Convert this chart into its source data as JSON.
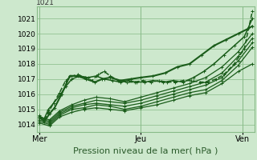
{
  "bg_color": "#cde8cd",
  "grid_color": "#88bb88",
  "line_color": "#1a5c1a",
  "xlabel": "Pression niveau de la mer( hPa )",
  "xlabel_fontsize": 8,
  "ylim": [
    1013.5,
    1021.8
  ],
  "xlim": [
    -0.02,
    2.12
  ],
  "yticks": [
    1014,
    1015,
    1016,
    1017,
    1018,
    1019,
    1020,
    1021
  ],
  "ytick_fontsize": 6.5,
  "xtick_labels": [
    "Mer",
    "Jeu",
    "Ven"
  ],
  "xtick_positions": [
    0.0,
    1.0,
    2.0
  ],
  "series": [
    {
      "x": [
        0.0,
        0.05,
        0.1,
        0.15,
        0.22,
        0.3,
        0.38,
        0.46,
        0.55,
        0.62,
        0.7,
        0.8,
        0.9,
        1.0,
        1.12,
        1.24,
        1.36,
        1.48,
        1.6,
        1.72,
        1.84,
        1.96,
        2.05,
        2.1
      ],
      "y": [
        1014.5,
        1014.2,
        1014.7,
        1015.1,
        1016.0,
        1017.2,
        1017.2,
        1017.0,
        1016.8,
        1017.0,
        1017.1,
        1016.9,
        1017.0,
        1017.1,
        1017.2,
        1017.4,
        1017.8,
        1018.0,
        1018.6,
        1019.2,
        1019.6,
        1020.0,
        1020.3,
        1020.5
      ],
      "ls": "-",
      "lw": 1.5,
      "dashed": false
    },
    {
      "x": [
        0.0,
        0.1,
        0.2,
        0.32,
        0.44,
        0.56,
        0.7,
        0.84,
        1.0,
        1.16,
        1.32,
        1.48,
        1.64,
        1.8,
        1.96,
        2.1
      ],
      "y": [
        1014.5,
        1014.3,
        1014.9,
        1015.3,
        1015.6,
        1015.8,
        1015.7,
        1015.5,
        1015.8,
        1016.1,
        1016.4,
        1016.7,
        1017.1,
        1017.8,
        1018.8,
        1020.0
      ],
      "ls": "-",
      "lw": 0.9,
      "dashed": false
    },
    {
      "x": [
        0.0,
        0.1,
        0.2,
        0.32,
        0.44,
        0.56,
        0.7,
        0.84,
        1.0,
        1.16,
        1.32,
        1.48,
        1.64,
        1.8,
        1.96,
        2.1
      ],
      "y": [
        1014.4,
        1014.2,
        1014.8,
        1015.2,
        1015.4,
        1015.6,
        1015.5,
        1015.4,
        1015.6,
        1015.9,
        1016.2,
        1016.5,
        1016.8,
        1017.4,
        1018.5,
        1019.7
      ],
      "ls": "-",
      "lw": 0.9,
      "dashed": false
    },
    {
      "x": [
        0.0,
        0.1,
        0.2,
        0.32,
        0.44,
        0.56,
        0.7,
        0.84,
        1.0,
        1.16,
        1.32,
        1.48,
        1.64,
        1.8,
        1.96,
        2.1
      ],
      "y": [
        1014.3,
        1014.1,
        1014.7,
        1015.1,
        1015.3,
        1015.4,
        1015.3,
        1015.2,
        1015.4,
        1015.7,
        1016.0,
        1016.3,
        1016.6,
        1017.1,
        1018.2,
        1019.4
      ],
      "ls": "-",
      "lw": 0.9,
      "dashed": false
    },
    {
      "x": [
        0.0,
        0.1,
        0.2,
        0.32,
        0.44,
        0.56,
        0.7,
        0.84,
        1.0,
        1.16,
        1.32,
        1.48,
        1.64,
        1.8,
        1.96,
        2.1
      ],
      "y": [
        1014.2,
        1014.0,
        1014.6,
        1015.0,
        1015.1,
        1015.3,
        1015.2,
        1015.0,
        1015.2,
        1015.5,
        1015.8,
        1016.1,
        1016.3,
        1016.9,
        1017.9,
        1019.1
      ],
      "ls": "-",
      "lw": 0.9,
      "dashed": false
    },
    {
      "x": [
        0.0,
        0.1,
        0.2,
        0.32,
        0.44,
        0.56,
        0.7,
        0.84,
        1.0,
        1.16,
        1.32,
        1.48,
        1.64,
        1.8,
        1.96,
        2.1
      ],
      "y": [
        1014.1,
        1013.9,
        1014.5,
        1014.8,
        1015.0,
        1015.1,
        1015.0,
        1014.9,
        1015.1,
        1015.3,
        1015.6,
        1015.9,
        1016.1,
        1016.7,
        1017.5,
        1018.0
      ],
      "ls": "-",
      "lw": 0.9,
      "dashed": false
    },
    {
      "x": [
        0.0,
        0.05,
        0.09,
        0.14,
        0.2,
        0.26,
        0.32,
        0.38,
        0.45,
        0.52,
        0.58,
        0.64,
        0.7,
        0.78,
        0.86,
        0.94,
        1.02,
        1.1,
        1.18,
        1.26,
        1.34,
        1.42,
        1.5,
        1.58,
        1.66,
        1.74,
        1.82,
        1.92,
        2.02,
        2.1
      ],
      "y": [
        1014.6,
        1014.3,
        1014.8,
        1015.4,
        1016.1,
        1016.9,
        1017.2,
        1017.3,
        1017.1,
        1016.9,
        1017.3,
        1017.5,
        1017.2,
        1016.9,
        1016.8,
        1016.8,
        1016.9,
        1016.8,
        1016.9,
        1016.8,
        1016.8,
        1016.9,
        1016.9,
        1016.8,
        1016.8,
        1017.0,
        1017.3,
        1018.0,
        1019.0,
        1021.5
      ],
      "ls": "--",
      "lw": 1.1,
      "dashed": true
    },
    {
      "x": [
        0.0,
        0.05,
        0.09,
        0.14,
        0.2,
        0.26,
        0.32,
        0.4,
        0.48,
        0.56,
        0.64,
        0.72,
        0.8,
        0.88,
        0.96,
        1.04,
        1.12,
        1.22,
        1.32,
        1.42,
        1.52,
        1.62,
        1.72,
        1.82,
        1.92,
        2.02,
        2.1
      ],
      "y": [
        1014.5,
        1014.4,
        1015.0,
        1015.4,
        1015.9,
        1016.5,
        1017.0,
        1017.2,
        1017.1,
        1017.2,
        1017.0,
        1016.9,
        1016.8,
        1016.9,
        1016.8,
        1016.8,
        1016.9,
        1016.8,
        1016.9,
        1016.8,
        1017.1,
        1017.5,
        1018.0,
        1018.6,
        1019.2,
        1019.8,
        1021.0
      ],
      "ls": "-",
      "lw": 1.1,
      "dashed": false
    }
  ]
}
